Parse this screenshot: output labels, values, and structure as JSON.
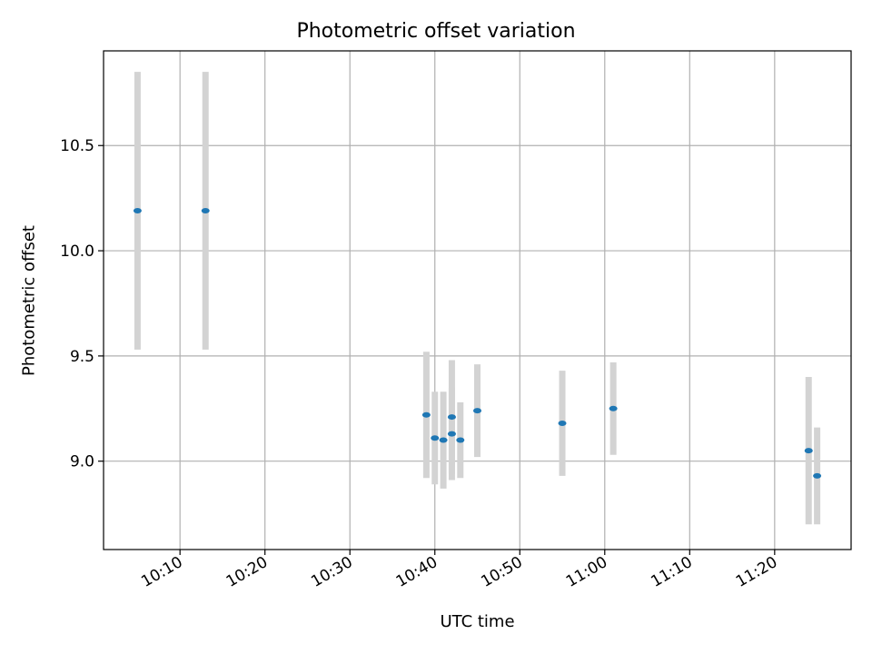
{
  "chart_data": {
    "type": "scatter",
    "title": "Photometric offset variation",
    "xlabel": "UTC time",
    "ylabel": "Photometric offset",
    "x_ticks": [
      "10:10",
      "10:20",
      "10:30",
      "10:40",
      "10:50",
      "11:00",
      "11:10",
      "11:20"
    ],
    "x_tick_minutes": [
      610,
      620,
      630,
      640,
      650,
      660,
      670,
      680
    ],
    "xlim": [
      "10:01",
      "11:29"
    ],
    "y_ticks": [
      "9.0",
      "9.5",
      "10.0",
      "10.5"
    ],
    "y_tick_values": [
      9.0,
      9.5,
      10.0,
      10.5
    ],
    "ylim": [
      8.58,
      10.95
    ],
    "grid": true,
    "marker_color": "#1f77b4",
    "errorbar_color": "#d3d3d3",
    "points": [
      {
        "x": "10:05",
        "y": 10.19,
        "err": 0.66
      },
      {
        "x": "10:13",
        "y": 10.19,
        "err": 0.66
      },
      {
        "x": "10:39",
        "y": 9.22,
        "err": 0.3
      },
      {
        "x": "10:40",
        "y": 9.11,
        "err": 0.22
      },
      {
        "x": "10:41",
        "y": 9.1,
        "err": 0.23
      },
      {
        "x": "10:42",
        "y": 9.13,
        "err": 0.22
      },
      {
        "x": "10:42",
        "y": 9.21,
        "err": 0.27
      },
      {
        "x": "10:43",
        "y": 9.1,
        "err": 0.18
      },
      {
        "x": "10:45",
        "y": 9.24,
        "err": 0.22
      },
      {
        "x": "10:55",
        "y": 9.18,
        "err": 0.25
      },
      {
        "x": "11:01",
        "y": 9.25,
        "err": 0.22
      },
      {
        "x": "11:24",
        "y": 9.05,
        "err": 0.35
      },
      {
        "x": "11:25",
        "y": 8.93,
        "err": 0.23
      }
    ]
  }
}
